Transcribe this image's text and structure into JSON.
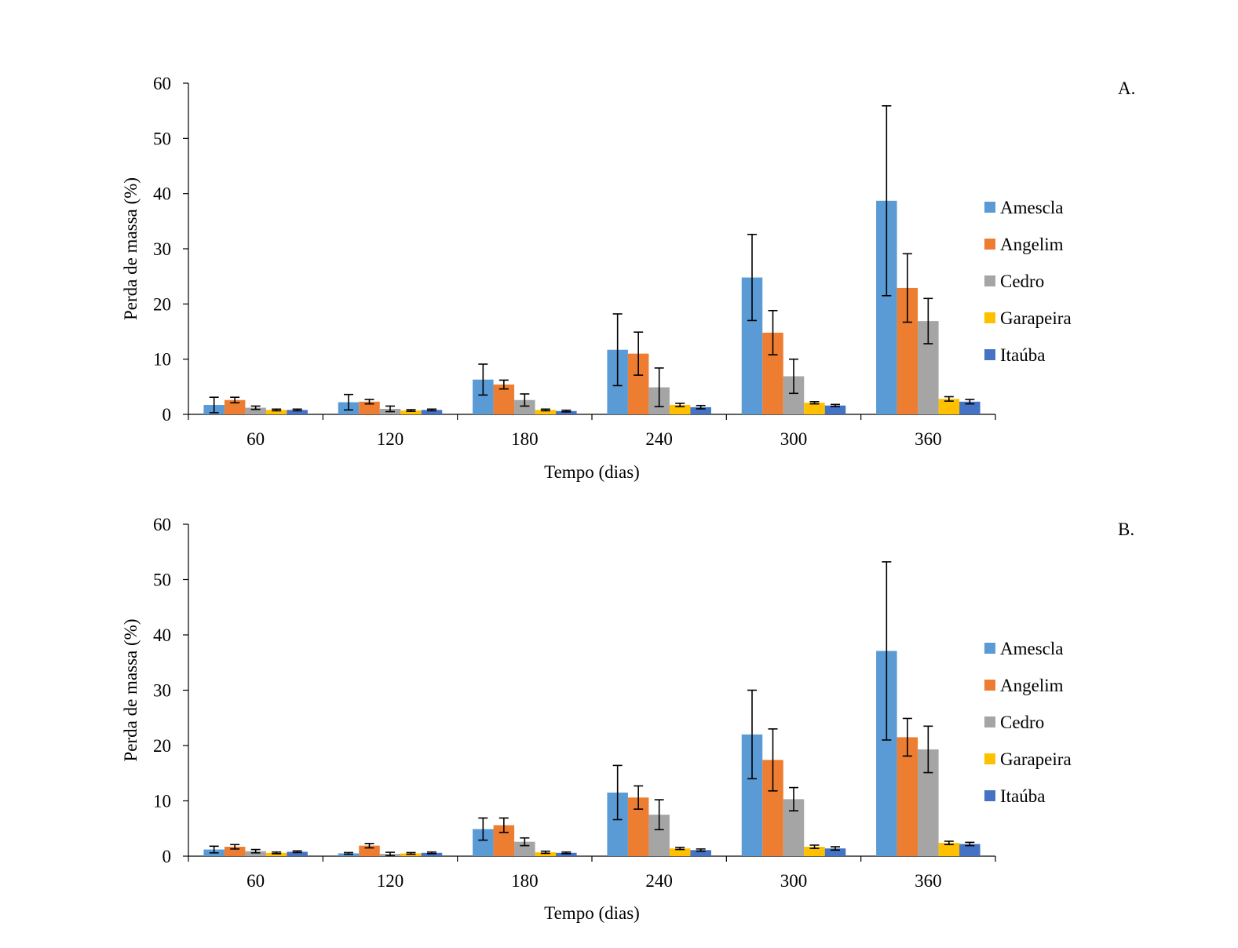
{
  "chart_data": [
    {
      "type": "bar",
      "panel_label": "A.",
      "categories": [
        "60",
        "120",
        "180",
        "240",
        "300",
        "360"
      ],
      "xlabel": "Tempo (dias)",
      "ylabel": "Perda de massa (%)",
      "ylim": [
        0,
        60
      ],
      "yticks": [
        0,
        10,
        20,
        30,
        40,
        50,
        60
      ],
      "grid": false,
      "legend_position": "right",
      "series": [
        {
          "name": "Amescla",
          "color": "#5B9BD5",
          "values": [
            1.7,
            2.2,
            6.3,
            11.7,
            24.8,
            38.7
          ],
          "errors": [
            1.4,
            1.4,
            2.8,
            6.5,
            7.8,
            17.2
          ]
        },
        {
          "name": "Angelim",
          "color": "#ED7D31",
          "values": [
            2.6,
            2.3,
            5.4,
            11.0,
            14.8,
            22.9
          ],
          "errors": [
            0.5,
            0.4,
            0.8,
            3.9,
            4.0,
            6.2
          ]
        },
        {
          "name": "Cedro",
          "color": "#A5A5A5",
          "values": [
            1.2,
            1.0,
            2.6,
            4.9,
            6.9,
            16.9
          ],
          "errors": [
            0.3,
            0.5,
            1.1,
            3.5,
            3.1,
            4.1
          ]
        },
        {
          "name": "Garapeira",
          "color": "#FFC000",
          "values": [
            0.8,
            0.7,
            0.8,
            1.7,
            2.1,
            2.8
          ],
          "errors": [
            0.15,
            0.15,
            0.15,
            0.3,
            0.2,
            0.4
          ]
        },
        {
          "name": "Itaúba",
          "color": "#4472C4",
          "values": [
            0.8,
            0.8,
            0.6,
            1.3,
            1.6,
            2.3
          ],
          "errors": [
            0.15,
            0.15,
            0.15,
            0.3,
            0.2,
            0.4
          ]
        }
      ]
    },
    {
      "type": "bar",
      "panel_label": "B.",
      "categories": [
        "60",
        "120",
        "180",
        "240",
        "300",
        "360"
      ],
      "xlabel": "Tempo (dias)",
      "ylabel": "Perda de massa (%)",
      "ylim": [
        0,
        60
      ],
      "yticks": [
        0,
        10,
        20,
        30,
        40,
        50,
        60
      ],
      "grid": false,
      "legend_position": "right",
      "series": [
        {
          "name": "Amescla",
          "color": "#5B9BD5",
          "values": [
            1.2,
            0.5,
            4.9,
            11.5,
            22.0,
            37.1
          ],
          "errors": [
            0.6,
            0.15,
            2.0,
            4.9,
            8.0,
            16.1
          ]
        },
        {
          "name": "Angelim",
          "color": "#ED7D31",
          "values": [
            1.7,
            1.9,
            5.6,
            10.6,
            17.4,
            21.5
          ],
          "errors": [
            0.4,
            0.4,
            1.3,
            2.1,
            5.6,
            3.4
          ]
        },
        {
          "name": "Cedro",
          "color": "#A5A5A5",
          "values": [
            0.9,
            0.4,
            2.6,
            7.5,
            10.3,
            19.3
          ],
          "errors": [
            0.3,
            0.3,
            0.7,
            2.7,
            2.1,
            4.2
          ]
        },
        {
          "name": "Garapeira",
          "color": "#FFC000",
          "values": [
            0.6,
            0.5,
            0.7,
            1.4,
            1.7,
            2.4
          ],
          "errors": [
            0.15,
            0.15,
            0.2,
            0.2,
            0.3,
            0.3
          ]
        },
        {
          "name": "Itaúba",
          "color": "#4472C4",
          "values": [
            0.8,
            0.6,
            0.6,
            1.1,
            1.4,
            2.2
          ],
          "errors": [
            0.15,
            0.15,
            0.15,
            0.2,
            0.3,
            0.3
          ]
        }
      ]
    }
  ]
}
